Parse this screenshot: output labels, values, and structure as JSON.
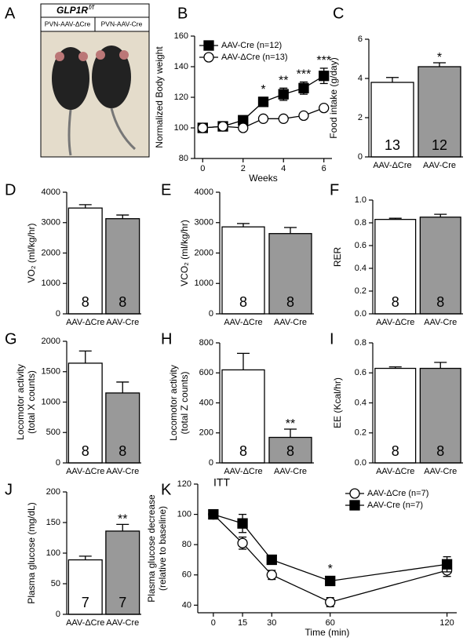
{
  "chart_data": [
    {
      "type": "image",
      "panel": "A",
      "title": "GLP1R",
      "title_sup": "f/f",
      "labels": [
        "PVN-AAV-ΔCre",
        "PVN-AAV-Cre"
      ]
    },
    {
      "type": "line",
      "panel": "B",
      "ylabel": [
        "Normalized Body weight"
      ],
      "xlabel": "Weeks",
      "x": [
        0,
        1,
        2,
        3,
        4,
        5,
        6
      ],
      "xlim": [
        -0.4,
        6.4
      ],
      "xticks": [
        0,
        2,
        4,
        6
      ],
      "ylim": [
        80,
        160
      ],
      "yticks": [
        80,
        100,
        120,
        140,
        160
      ],
      "legend": "upper left",
      "series": [
        {
          "name": "AAV-Cre (n=12)",
          "color": "#000000",
          "marker": "square",
          "values": [
            100,
            101,
            105,
            117,
            122,
            126,
            134
          ],
          "errors": [
            2,
            2,
            2,
            3,
            4,
            4,
            5
          ]
        },
        {
          "name": "AAV-ΔCre (n=13)",
          "color": "#ffffff",
          "marker": "circle",
          "values": [
            100,
            101,
            100,
            106,
            106,
            108,
            113
          ],
          "errors": [
            2,
            1,
            1,
            1,
            1,
            1,
            1
          ]
        }
      ],
      "annotations": [
        {
          "x": 3,
          "text": "*"
        },
        {
          "x": 4,
          "text": "**"
        },
        {
          "x": 5,
          "text": "***"
        },
        {
          "x": 6,
          "text": "***"
        }
      ]
    },
    {
      "type": "bar",
      "panel": "C",
      "ylabel": [
        "Food intake (g/day)"
      ],
      "categories": [
        "AAV-ΔCre",
        "AAV-Cre"
      ],
      "colors": [
        "#ffffff",
        "#999999"
      ],
      "values": [
        3.8,
        4.6
      ],
      "errors": [
        0.25,
        0.2
      ],
      "n": [
        13,
        12
      ],
      "ylim": [
        0,
        6
      ],
      "yticks": [
        0,
        2,
        4,
        6
      ],
      "annotations": [
        {
          "index": 1,
          "text": "*"
        }
      ]
    },
    {
      "type": "bar",
      "panel": "D",
      "ylabel": [
        "VO₂ (ml/kg/hr)"
      ],
      "categories": [
        "AAV-ΔCre",
        "AAV-Cre"
      ],
      "colors": [
        "#ffffff",
        "#999999"
      ],
      "values": [
        3480,
        3130
      ],
      "errors": [
        110,
        120
      ],
      "n": [
        8,
        8
      ],
      "ylim": [
        0,
        4000
      ],
      "yticks": [
        0,
        1000,
        2000,
        3000,
        4000
      ]
    },
    {
      "type": "bar",
      "panel": "E",
      "ylabel": [
        "VCO₂ (ml/kg/hr)"
      ],
      "categories": [
        "AAV-ΔCre",
        "AAV-Cre"
      ],
      "colors": [
        "#ffffff",
        "#999999"
      ],
      "values": [
        2860,
        2640
      ],
      "errors": [
        110,
        200
      ],
      "n": [
        8,
        8
      ],
      "ylim": [
        0,
        4000
      ],
      "yticks": [
        0,
        1000,
        2000,
        3000,
        4000
      ]
    },
    {
      "type": "bar",
      "panel": "F",
      "ylabel": [
        "RER"
      ],
      "categories": [
        "AAV-ΔCre",
        "AAV-Cre"
      ],
      "colors": [
        "#ffffff",
        "#999999"
      ],
      "values": [
        0.83,
        0.85
      ],
      "errors": [
        0.01,
        0.025
      ],
      "n": [
        8,
        8
      ],
      "ylim": [
        0,
        1.0
      ],
      "yticks": [
        {
          "value": 0,
          "label": "0.0"
        },
        0.2,
        0.4,
        0.6,
        0.8,
        {
          "value": 1,
          "label": "1.0"
        }
      ]
    },
    {
      "type": "bar",
      "panel": "G",
      "ylabel": [
        "Locomotor activity",
        "(total X counts)"
      ],
      "categories": [
        "AAV-ΔCre",
        "AAV-Cre"
      ],
      "colors": [
        "#ffffff",
        "#999999"
      ],
      "values": [
        1640,
        1150
      ],
      "errors": [
        200,
        180
      ],
      "n": [
        8,
        8
      ],
      "ylim": [
        0,
        2000
      ],
      "yticks": [
        0,
        500,
        1000,
        1500,
        2000
      ]
    },
    {
      "type": "bar",
      "panel": "H",
      "ylabel": [
        "Locomotor activity",
        "(total Z counts)"
      ],
      "categories": [
        "AAV-ΔCre",
        "AAV-Cre"
      ],
      "colors": [
        "#ffffff",
        "#999999"
      ],
      "values": [
        620,
        170
      ],
      "errors": [
        110,
        55
      ],
      "n": [
        8,
        8
      ],
      "ylim": [
        0,
        800
      ],
      "yticks": [
        0,
        200,
        400,
        600,
        800
      ],
      "annotations": [
        {
          "index": 1,
          "text": "**"
        }
      ]
    },
    {
      "type": "bar",
      "panel": "I",
      "ylabel": [
        "EE (Kcal/hr)"
      ],
      "categories": [
        "AAV-ΔCre",
        "AAV-Cre"
      ],
      "colors": [
        "#ffffff",
        "#999999"
      ],
      "values": [
        0.63,
        0.63
      ],
      "errors": [
        0.01,
        0.04
      ],
      "n": [
        8,
        8
      ],
      "ylim": [
        0,
        0.8
      ],
      "yticks": [
        {
          "value": 0,
          "label": "0.0"
        },
        0.2,
        0.4,
        0.6,
        0.8
      ]
    },
    {
      "type": "bar",
      "panel": "J",
      "ylabel": [
        "Plasma glucose (mg/dL)"
      ],
      "categories": [
        "AAV-ΔCre",
        "AAV-Cre"
      ],
      "colors": [
        "#ffffff",
        "#999999"
      ],
      "values": [
        89,
        136
      ],
      "errors": [
        6,
        11
      ],
      "n": [
        7,
        7
      ],
      "ylim": [
        0,
        200
      ],
      "yticks": [
        0,
        50,
        100,
        150,
        200
      ],
      "annotations": [
        {
          "index": 1,
          "text": "**"
        }
      ]
    },
    {
      "type": "line",
      "panel": "K",
      "subtitle": "ITT",
      "ylabel": [
        "Plasma glucose decrease",
        "(relative to baseline)"
      ],
      "xlabel": "Time (min)",
      "x": [
        0,
        15,
        30,
        60,
        120
      ],
      "xlim": [
        -8,
        125
      ],
      "xticks": [
        0,
        15,
        30,
        60,
        120
      ],
      "ylim": [
        35,
        120
      ],
      "yticks": [
        40,
        60,
        80,
        100,
        120
      ],
      "legend": "upper right",
      "series": [
        {
          "name": "AAV-ΔCre (n=7)",
          "color": "#ffffff",
          "marker": "circle",
          "values": [
            100,
            81,
            60,
            42,
            63
          ],
          "errors": [
            2,
            4,
            3,
            3,
            4
          ]
        },
        {
          "name": "AAV-Cre (n=7)",
          "color": "#000000",
          "marker": "square",
          "values": [
            100,
            94,
            70,
            56,
            67
          ],
          "errors": [
            2,
            6,
            3,
            3,
            5
          ]
        }
      ],
      "annotations": [
        {
          "x": 60,
          "text": "*"
        }
      ]
    }
  ]
}
